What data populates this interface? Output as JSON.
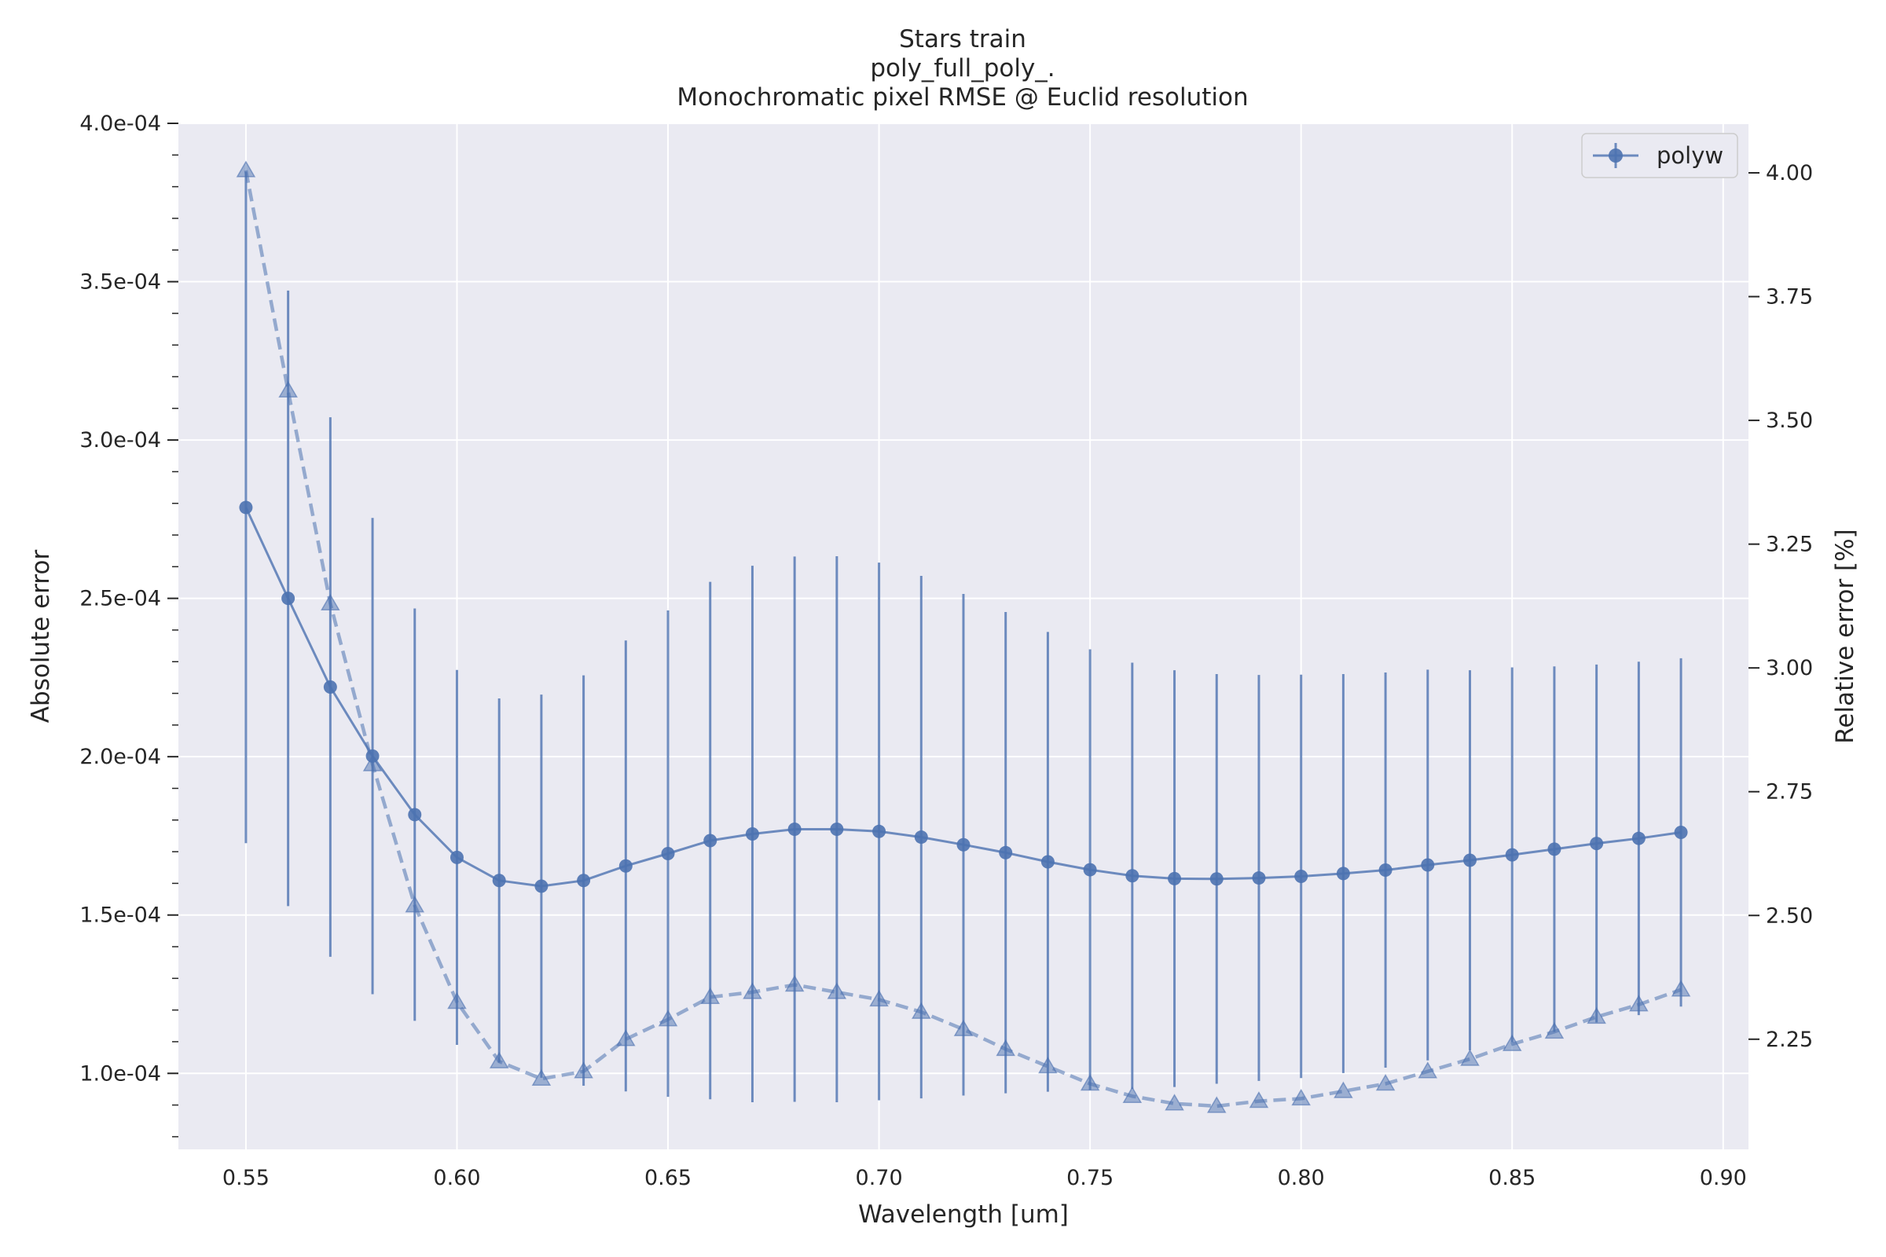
{
  "chart_data": {
    "type": "line",
    "title_lines": [
      "Stars train",
      "poly_full_poly_.",
      "Monochromatic pixel RMSE @ Euclid resolution"
    ],
    "xlabel": "Wavelength [um]",
    "ylabel": "Absolute error",
    "ylabel_right": "Relative error [%]",
    "xlim": [
      0.534,
      0.906
    ],
    "ylim": [
      7.6e-05,
      0.0004
    ],
    "ylim_right": [
      2.0275,
      4.1
    ],
    "x_ticks": [
      0.55,
      0.6,
      0.65,
      0.7,
      0.75,
      0.8,
      0.85,
      0.9
    ],
    "x_tick_labels": [
      "0.55",
      "0.60",
      "0.65",
      "0.70",
      "0.75",
      "0.80",
      "0.85",
      "0.90"
    ],
    "y_ticks": [
      0.0001,
      0.00015,
      0.0002,
      0.00025,
      0.0003,
      0.00035,
      0.0004
    ],
    "y_tick_labels": [
      "1.0e-04",
      "1.5e-04",
      "2.0e-04",
      "2.5e-04",
      "3.0e-04",
      "3.5e-04",
      "4.0e-04"
    ],
    "y_right_ticks": [
      2.25,
      2.5,
      2.75,
      3.0,
      3.25,
      3.5,
      3.75,
      4.0
    ],
    "y_right_tick_labels": [
      "2.25",
      "2.50",
      "2.75",
      "3.00",
      "3.25",
      "3.50",
      "3.75",
      "4.00"
    ],
    "grid": true,
    "legend_position": "top-right",
    "colors": {
      "series": "#4c72b0",
      "background": "#eaeaf2",
      "grid": "#ffffff",
      "text": "#262626"
    },
    "x": [
      0.55,
      0.56,
      0.57,
      0.58,
      0.59,
      0.6,
      0.61,
      0.62,
      0.63,
      0.64,
      0.65,
      0.66,
      0.67,
      0.68,
      0.69,
      0.7,
      0.71,
      0.72,
      0.73,
      0.74,
      0.75,
      0.76,
      0.77,
      0.78,
      0.79,
      0.8,
      0.81,
      0.82,
      0.83,
      0.84,
      0.85,
      0.86,
      0.87,
      0.88,
      0.89
    ],
    "series": [
      {
        "name": "polyw",
        "axis": "left",
        "marker": "circle",
        "linestyle": "solid",
        "values": [
          0.0002787,
          0.00025,
          0.000222,
          0.0002002,
          0.0001817,
          0.0001682,
          0.0001609,
          0.0001591,
          0.0001609,
          0.0001655,
          0.0001694,
          0.0001735,
          0.0001756,
          0.0001771,
          0.0001771,
          0.0001764,
          0.0001746,
          0.0001722,
          0.0001697,
          0.0001668,
          0.0001643,
          0.0001624,
          0.0001615,
          0.0001614,
          0.0001617,
          0.0001622,
          0.0001631,
          0.0001642,
          0.0001658,
          0.0001673,
          0.000169,
          0.0001708,
          0.0001726,
          0.0001742,
          0.0001761
        ],
        "errors": [
          0.000106,
          9.72e-05,
          8.52e-05,
          7.52e-05,
          6.51e-05,
          5.92e-05,
          5.75e-05,
          6.05e-05,
          6.48e-05,
          7.12e-05,
          7.68e-05,
          8.17e-05,
          8.47e-05,
          8.61e-05,
          8.62e-05,
          8.49e-05,
          8.25e-05,
          7.92e-05,
          7.6e-05,
          7.26e-05,
          6.96e-05,
          6.73e-05,
          6.58e-05,
          6.47e-05,
          6.41e-05,
          6.37e-05,
          6.3e-05,
          6.24e-05,
          6.17e-05,
          6e-05,
          5.92e-05,
          5.77e-05,
          5.65e-05,
          5.58e-05,
          5.5e-05
        ]
      },
      {
        "name": "",
        "axis": "right",
        "marker": "triangle",
        "linestyle": "dashed",
        "values": [
          4.005,
          3.56,
          3.13,
          2.805,
          2.52,
          2.325,
          2.205,
          2.17,
          2.185,
          2.25,
          2.29,
          2.335,
          2.345,
          2.36,
          2.345,
          2.33,
          2.305,
          2.27,
          2.23,
          2.195,
          2.16,
          2.135,
          2.12,
          2.115,
          2.125,
          2.13,
          2.145,
          2.16,
          2.185,
          2.21,
          2.24,
          2.265,
          2.295,
          2.32,
          2.35
        ]
      }
    ]
  }
}
